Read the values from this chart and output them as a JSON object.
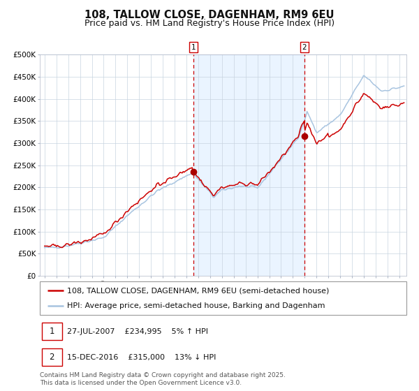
{
  "title": "108, TALLOW CLOSE, DAGENHAM, RM9 6EU",
  "subtitle": "Price paid vs. HM Land Registry's House Price Index (HPI)",
  "ylim": [
    0,
    500000
  ],
  "yticks": [
    0,
    50000,
    100000,
    150000,
    200000,
    250000,
    300000,
    350000,
    400000,
    450000,
    500000
  ],
  "ytick_labels": [
    "£0",
    "£50K",
    "£100K",
    "£150K",
    "£200K",
    "£250K",
    "£300K",
    "£350K",
    "£400K",
    "£450K",
    "£500K"
  ],
  "xlim_min": 1994.6,
  "xlim_max": 2025.6,
  "hpi_color": "#a8c4e0",
  "price_color": "#cc0000",
  "marker_color": "#aa0000",
  "vline_color": "#cc0000",
  "bg_shade_color": "#ddeeff",
  "grid_color": "#c8d4e0",
  "marker1_x": 2007.57,
  "marker1_y": 234995,
  "marker2_x": 2016.96,
  "marker2_y": 315000,
  "legend_line1": "108, TALLOW CLOSE, DAGENHAM, RM9 6EU (semi-detached house)",
  "legend_line2": "HPI: Average price, semi-detached house, Barking and Dagenham",
  "ann1_text": "27-JUL-2007    £234,995    5% ↑ HPI",
  "ann2_text": "15-DEC-2016    £315,000    13% ↓ HPI",
  "footer": "Contains HM Land Registry data © Crown copyright and database right 2025.\nThis data is licensed under the Open Government Licence v3.0.",
  "title_fontsize": 10.5,
  "subtitle_fontsize": 9,
  "tick_fontsize": 7.5,
  "legend_fontsize": 8,
  "ann_fontsize": 8,
  "footer_fontsize": 6.5
}
